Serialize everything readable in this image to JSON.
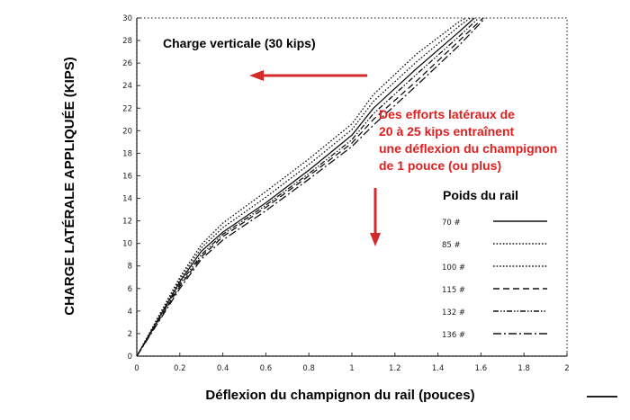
{
  "chart_data": {
    "type": "line",
    "title": "",
    "xlabel": "Déflexion du champignon du rail (pouces)",
    "ylabel": "CHARGE LATÉRALE APPLIQUÉE (KIPS)",
    "xlim": [
      0,
      2
    ],
    "ylim": [
      0,
      30
    ],
    "x_ticks": [
      "0",
      "0.2",
      "0.4",
      "0.6",
      "0.8",
      "1",
      "1.2",
      "1.4",
      "1.6",
      "1.8",
      "2"
    ],
    "y_ticks": [
      "0",
      "2",
      "4",
      "6",
      "8",
      "10",
      "12",
      "14",
      "16",
      "18",
      "20",
      "22",
      "24",
      "26",
      "28",
      "30"
    ],
    "grid": false,
    "legend": {
      "title": "Poids du rail",
      "position": "right"
    },
    "series": [
      {
        "name": "70 #",
        "style": "solid",
        "x": [
          0,
          0.1,
          0.2,
          0.3,
          0.4,
          0.6,
          0.8,
          1.0,
          1.1,
          1.3,
          1.5,
          1.57
        ],
        "y": [
          0,
          3.3,
          6.6,
          9.3,
          11.0,
          13.6,
          16.5,
          19.6,
          22.0,
          25.5,
          28.8,
          30
        ]
      },
      {
        "name": "85 #",
        "style": "dotted",
        "x": [
          0,
          0.1,
          0.2,
          0.3,
          0.4,
          0.6,
          0.8,
          1.0,
          1.1,
          1.3,
          1.5,
          1.55
        ],
        "y": [
          0,
          3.4,
          6.8,
          9.6,
          11.4,
          14.1,
          17.0,
          20.1,
          22.6,
          26.1,
          29.3,
          30
        ]
      },
      {
        "name": "100 #",
        "style": "dotted",
        "x": [
          0,
          0.1,
          0.2,
          0.3,
          0.4,
          0.6,
          0.8,
          1.0,
          1.1,
          1.3,
          1.5,
          1.53
        ],
        "y": [
          0,
          3.5,
          7.0,
          9.9,
          11.8,
          14.6,
          17.5,
          20.6,
          23.2,
          26.8,
          29.7,
          30
        ]
      },
      {
        "name": "115 #",
        "style": "dashed",
        "x": [
          0,
          0.1,
          0.2,
          0.3,
          0.4,
          0.6,
          0.8,
          1.0,
          1.1,
          1.3,
          1.5,
          1.61
        ],
        "y": [
          0,
          3.1,
          6.2,
          8.8,
          10.6,
          13.2,
          16.0,
          18.9,
          21.0,
          24.4,
          28.0,
          30
        ]
      },
      {
        "name": "132 #",
        "style": "dash-dot-dot",
        "x": [
          0,
          0.1,
          0.2,
          0.3,
          0.4,
          0.6,
          0.8,
          1.0,
          1.1,
          1.3,
          1.5,
          1.59
        ],
        "y": [
          0,
          3.2,
          6.4,
          9.0,
          10.8,
          13.4,
          16.2,
          19.2,
          21.5,
          25.0,
          28.4,
          30
        ]
      },
      {
        "name": "136 #",
        "style": "dash-dot",
        "x": [
          0,
          0.1,
          0.2,
          0.3,
          0.4,
          0.6,
          0.8,
          1.0,
          1.1,
          1.3,
          1.5,
          1.62
        ],
        "y": [
          0,
          3.0,
          6.0,
          8.6,
          10.3,
          12.9,
          15.7,
          18.6,
          20.5,
          24.0,
          27.6,
          30
        ]
      }
    ],
    "annotations": [
      {
        "text": "Charge verticale (30 kips)",
        "color": "#000000"
      },
      {
        "text_lines": [
          "Des efforts latéraux de",
          "20 à 25 kips entraînent",
          "une déflexion du champignon",
          "de 1 pouce (ou plus)"
        ],
        "color": "#e02020"
      }
    ],
    "arrow_color": "#d42a2a"
  }
}
